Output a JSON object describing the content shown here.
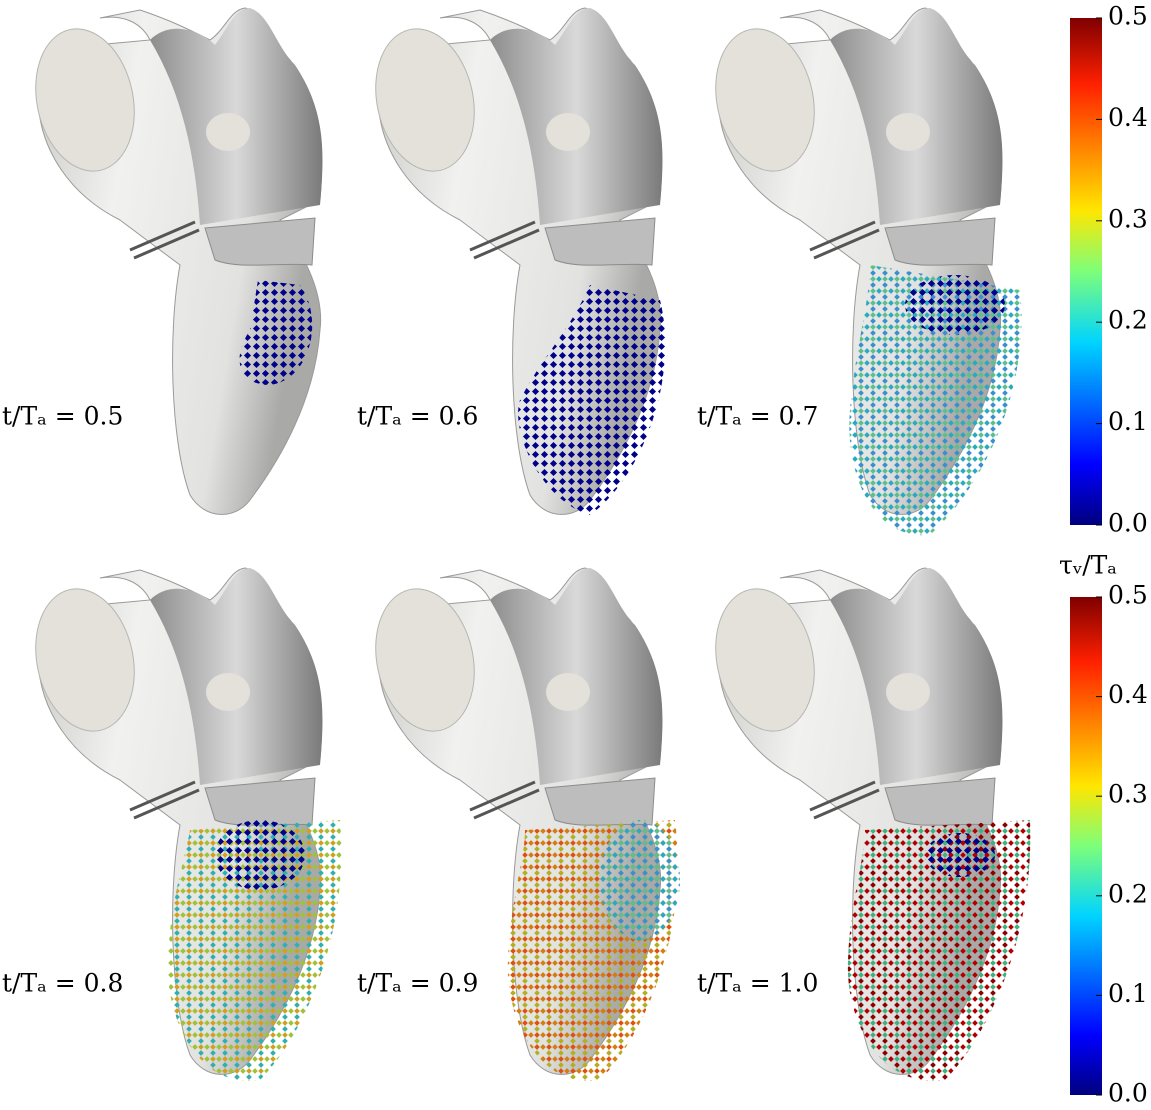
{
  "panels": [
    {
      "label": "t/Tₐ = 0.5"
    },
    {
      "label": "t/Tₐ = 0.6"
    },
    {
      "label": "t/Tₐ = 0.7"
    },
    {
      "label": "t/Tₐ = 0.8"
    },
    {
      "label": "t/Tₐ = 0.9"
    },
    {
      "label": "t/Tₐ = 1.0"
    }
  ],
  "colorbars": [
    {
      "lim": [
        0,
        0.5
      ],
      "ticks": [
        {
          "value": 0,
          "label": "0.0"
        },
        {
          "value": 0.1,
          "label": "0.1"
        },
        0.2,
        0.3,
        0.4,
        0.5
      ]
    },
    {
      "label": "τᵥ/Tₐ",
      "lim": [
        0,
        0.5
      ],
      "ticks": [
        {
          "value": 0,
          "label": "0.0"
        },
        {
          "value": 0.1,
          "label": "0.1"
        },
        0.2,
        0.3,
        0.4,
        0.5
      ]
    }
  ]
}
